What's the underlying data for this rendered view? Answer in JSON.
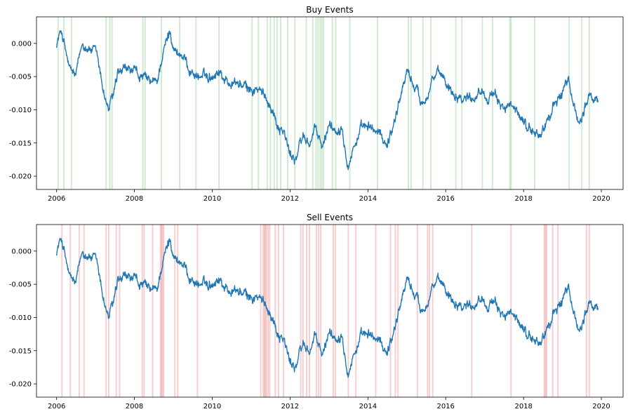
{
  "chart_data": [
    {
      "type": "line",
      "title": "Buy Events",
      "xlabel": "",
      "ylabel": "",
      "x_axis": "date",
      "xlim": [
        "2005-06-26",
        "2020-07-23"
      ],
      "ylim": [
        -0.022,
        0.004
      ],
      "xticks": [
        "2006",
        "2008",
        "2010",
        "2012",
        "2014",
        "2016",
        "2018",
        "2020"
      ],
      "yticks": [
        "0.000",
        "-0.005",
        "-0.010",
        "-0.015",
        "-0.020"
      ],
      "grid": false,
      "legend": "none",
      "line_color": "#1f77b4",
      "event_color": "#2ca02c",
      "series": [
        {
          "x": [
            "2006-01-01",
            "2006-02-15",
            "2006-05-01",
            "2006-07-01",
            "2006-09-01",
            "2006-12-01",
            "2007-01-15",
            "2007-03-01",
            "2007-05-01",
            "2007-06-15",
            "2007-08-01",
            "2007-11-01",
            "2008-03-01",
            "2008-06-01",
            "2008-08-01",
            "2008-09-15",
            "2008-12-01",
            "2009-01-15",
            "2009-04-01",
            "2009-06-01",
            "2009-09-01",
            "2009-12-01",
            "2010-03-01",
            "2010-06-01",
            "2010-09-01",
            "2010-12-01",
            "2011-03-01",
            "2011-05-01",
            "2011-07-01",
            "2011-09-01",
            "2011-11-01",
            "2012-01-01",
            "2012-03-01",
            "2012-05-01",
            "2012-07-01",
            "2012-09-01",
            "2012-11-01",
            "2013-01-01",
            "2013-03-01",
            "2013-05-01",
            "2013-07-01",
            "2013-09-01",
            "2013-11-01",
            "2014-01-01",
            "2014-03-01",
            "2014-05-01",
            "2014-07-01",
            "2014-09-01",
            "2014-11-01",
            "2015-01-01",
            "2015-03-01",
            "2015-06-01",
            "2015-09-01",
            "2015-12-01",
            "2016-03-01",
            "2016-06-01",
            "2016-09-01",
            "2016-12-01",
            "2017-03-01",
            "2017-06-01",
            "2017-09-01",
            "2017-12-01",
            "2018-03-01",
            "2018-06-01",
            "2018-09-01",
            "2018-12-01",
            "2019-03-01",
            "2019-06-01",
            "2019-09-01",
            "2019-12-01"
          ],
          "values": [
            0.0,
            0.002,
            -0.004,
            -0.005,
            0.0,
            -0.001,
            -0.002,
            -0.006,
            -0.01,
            -0.008,
            -0.005,
            -0.004,
            -0.005,
            -0.006,
            -0.006,
            -0.002,
            0.002,
            -0.001,
            -0.002,
            -0.004,
            -0.005,
            -0.005,
            -0.004,
            -0.006,
            -0.006,
            -0.007,
            -0.007,
            -0.008,
            -0.009,
            -0.012,
            -0.013,
            -0.017,
            -0.017,
            -0.014,
            -0.015,
            -0.013,
            -0.016,
            -0.012,
            -0.013,
            -0.012,
            -0.018,
            -0.015,
            -0.013,
            -0.013,
            -0.013,
            -0.014,
            -0.015,
            -0.012,
            -0.008,
            -0.004,
            -0.006,
            -0.009,
            -0.005,
            -0.005,
            -0.007,
            -0.008,
            -0.008,
            -0.007,
            -0.008,
            -0.009,
            -0.01,
            -0.011,
            -0.013,
            -0.014,
            -0.011,
            -0.008,
            -0.006,
            -0.012,
            -0.008,
            -0.009
          ]
        }
      ],
      "events": [
        "2006-01-15",
        "2006-03-10",
        "2006-05-20",
        "2007-04-10",
        "2007-05-15",
        "2007-06-05",
        "2008-03-20",
        "2008-04-10",
        "2008-09-10",
        "2009-03-01",
        "2009-08-01",
        "2010-03-05",
        "2011-01-10",
        "2011-03-10",
        "2011-06-01",
        "2011-07-01",
        "2011-08-05",
        "2011-09-01",
        "2011-10-05",
        "2011-12-10",
        "2012-02-15",
        "2012-06-01",
        "2012-08-01",
        "2012-09-01",
        "2012-09-20",
        "2012-10-10",
        "2012-10-25",
        "2012-11-10",
        "2013-02-01",
        "2013-03-05",
        "2013-07-15",
        "2014-04-01",
        "2015-01-15",
        "2015-02-10",
        "2015-06-01",
        "2015-08-15",
        "2016-04-05",
        "2016-06-01",
        "2016-12-10",
        "2017-03-15",
        "2017-08-25",
        "2017-09-05",
        "2018-04-15",
        "2019-03-05",
        "2019-07-01",
        "2019-09-10"
      ]
    },
    {
      "type": "line",
      "title": "Sell Events",
      "xlabel": "",
      "ylabel": "",
      "x_axis": "date",
      "xlim": [
        "2005-06-26",
        "2020-07-23"
      ],
      "ylim": [
        -0.022,
        0.004
      ],
      "xticks": [
        "2006",
        "2008",
        "2010",
        "2012",
        "2014",
        "2016",
        "2018",
        "2020"
      ],
      "yticks": [
        "0.000",
        "-0.005",
        "-0.010",
        "-0.015",
        "-0.020"
      ],
      "grid": false,
      "legend": "none",
      "line_color": "#1f77b4",
      "event_color": "#d62728",
      "series": [
        {
          "x": [
            "2006-01-01",
            "2006-02-15",
            "2006-05-01",
            "2006-07-01",
            "2006-09-01",
            "2006-12-01",
            "2007-01-15",
            "2007-03-01",
            "2007-05-01",
            "2007-06-15",
            "2007-08-01",
            "2007-11-01",
            "2008-03-01",
            "2008-06-01",
            "2008-08-01",
            "2008-09-15",
            "2008-12-01",
            "2009-01-15",
            "2009-04-01",
            "2009-06-01",
            "2009-09-01",
            "2009-12-01",
            "2010-03-01",
            "2010-06-01",
            "2010-09-01",
            "2010-12-01",
            "2011-03-01",
            "2011-05-01",
            "2011-07-01",
            "2011-09-01",
            "2011-11-01",
            "2012-01-01",
            "2012-03-01",
            "2012-05-01",
            "2012-07-01",
            "2012-09-01",
            "2012-11-01",
            "2013-01-01",
            "2013-03-01",
            "2013-05-01",
            "2013-07-01",
            "2013-09-01",
            "2013-11-01",
            "2014-01-01",
            "2014-03-01",
            "2014-05-01",
            "2014-07-01",
            "2014-09-01",
            "2014-11-01",
            "2015-01-01",
            "2015-03-01",
            "2015-06-01",
            "2015-09-01",
            "2015-12-01",
            "2016-03-01",
            "2016-06-01",
            "2016-09-01",
            "2016-12-01",
            "2017-03-01",
            "2017-06-01",
            "2017-09-01",
            "2017-12-01",
            "2018-03-01",
            "2018-06-01",
            "2018-09-01",
            "2018-12-01",
            "2019-03-01",
            "2019-06-01",
            "2019-09-01",
            "2019-12-01"
          ],
          "values": [
            0.0,
            0.002,
            -0.004,
            -0.005,
            0.0,
            -0.001,
            -0.002,
            -0.006,
            -0.01,
            -0.008,
            -0.005,
            -0.004,
            -0.005,
            -0.006,
            -0.006,
            -0.002,
            0.002,
            -0.001,
            -0.002,
            -0.004,
            -0.005,
            -0.005,
            -0.004,
            -0.006,
            -0.006,
            -0.007,
            -0.007,
            -0.008,
            -0.009,
            -0.012,
            -0.013,
            -0.017,
            -0.017,
            -0.014,
            -0.015,
            -0.013,
            -0.016,
            -0.012,
            -0.013,
            -0.012,
            -0.018,
            -0.015,
            -0.013,
            -0.013,
            -0.013,
            -0.014,
            -0.015,
            -0.012,
            -0.008,
            -0.004,
            -0.006,
            -0.009,
            -0.005,
            -0.005,
            -0.007,
            -0.008,
            -0.008,
            -0.007,
            -0.008,
            -0.009,
            -0.01,
            -0.011,
            -0.013,
            -0.014,
            -0.011,
            -0.008,
            -0.006,
            -0.012,
            -0.008,
            -0.009
          ]
        }
      ],
      "events": [
        "2006-02-20",
        "2006-05-10",
        "2006-08-01",
        "2006-09-15",
        "2007-04-10",
        "2007-05-05",
        "2007-07-15",
        "2007-08-15",
        "2008-03-15",
        "2008-04-01",
        "2008-06-20",
        "2008-09-01",
        "2008-09-10",
        "2008-09-20",
        "2008-10-01",
        "2009-01-15",
        "2009-02-10",
        "2009-08-15",
        "2011-04-01",
        "2011-04-25",
        "2011-05-05",
        "2011-05-15",
        "2011-05-25",
        "2011-06-10",
        "2011-06-25",
        "2011-08-15",
        "2011-09-15",
        "2011-11-01",
        "2012-04-10",
        "2012-05-01",
        "2012-06-05",
        "2012-07-01",
        "2012-09-05",
        "2012-09-25",
        "2012-10-15",
        "2013-02-10",
        "2013-03-01",
        "2013-07-01",
        "2013-09-10",
        "2014-03-15",
        "2014-08-01",
        "2014-09-15",
        "2014-10-10",
        "2015-04-10",
        "2015-07-15",
        "2015-08-01",
        "2015-09-01",
        "2016-09-01",
        "2017-09-05",
        "2018-07-15",
        "2018-07-25",
        "2018-08-05",
        "2018-10-01",
        "2018-11-20",
        "2019-08-15",
        "2019-09-10"
      ]
    }
  ]
}
